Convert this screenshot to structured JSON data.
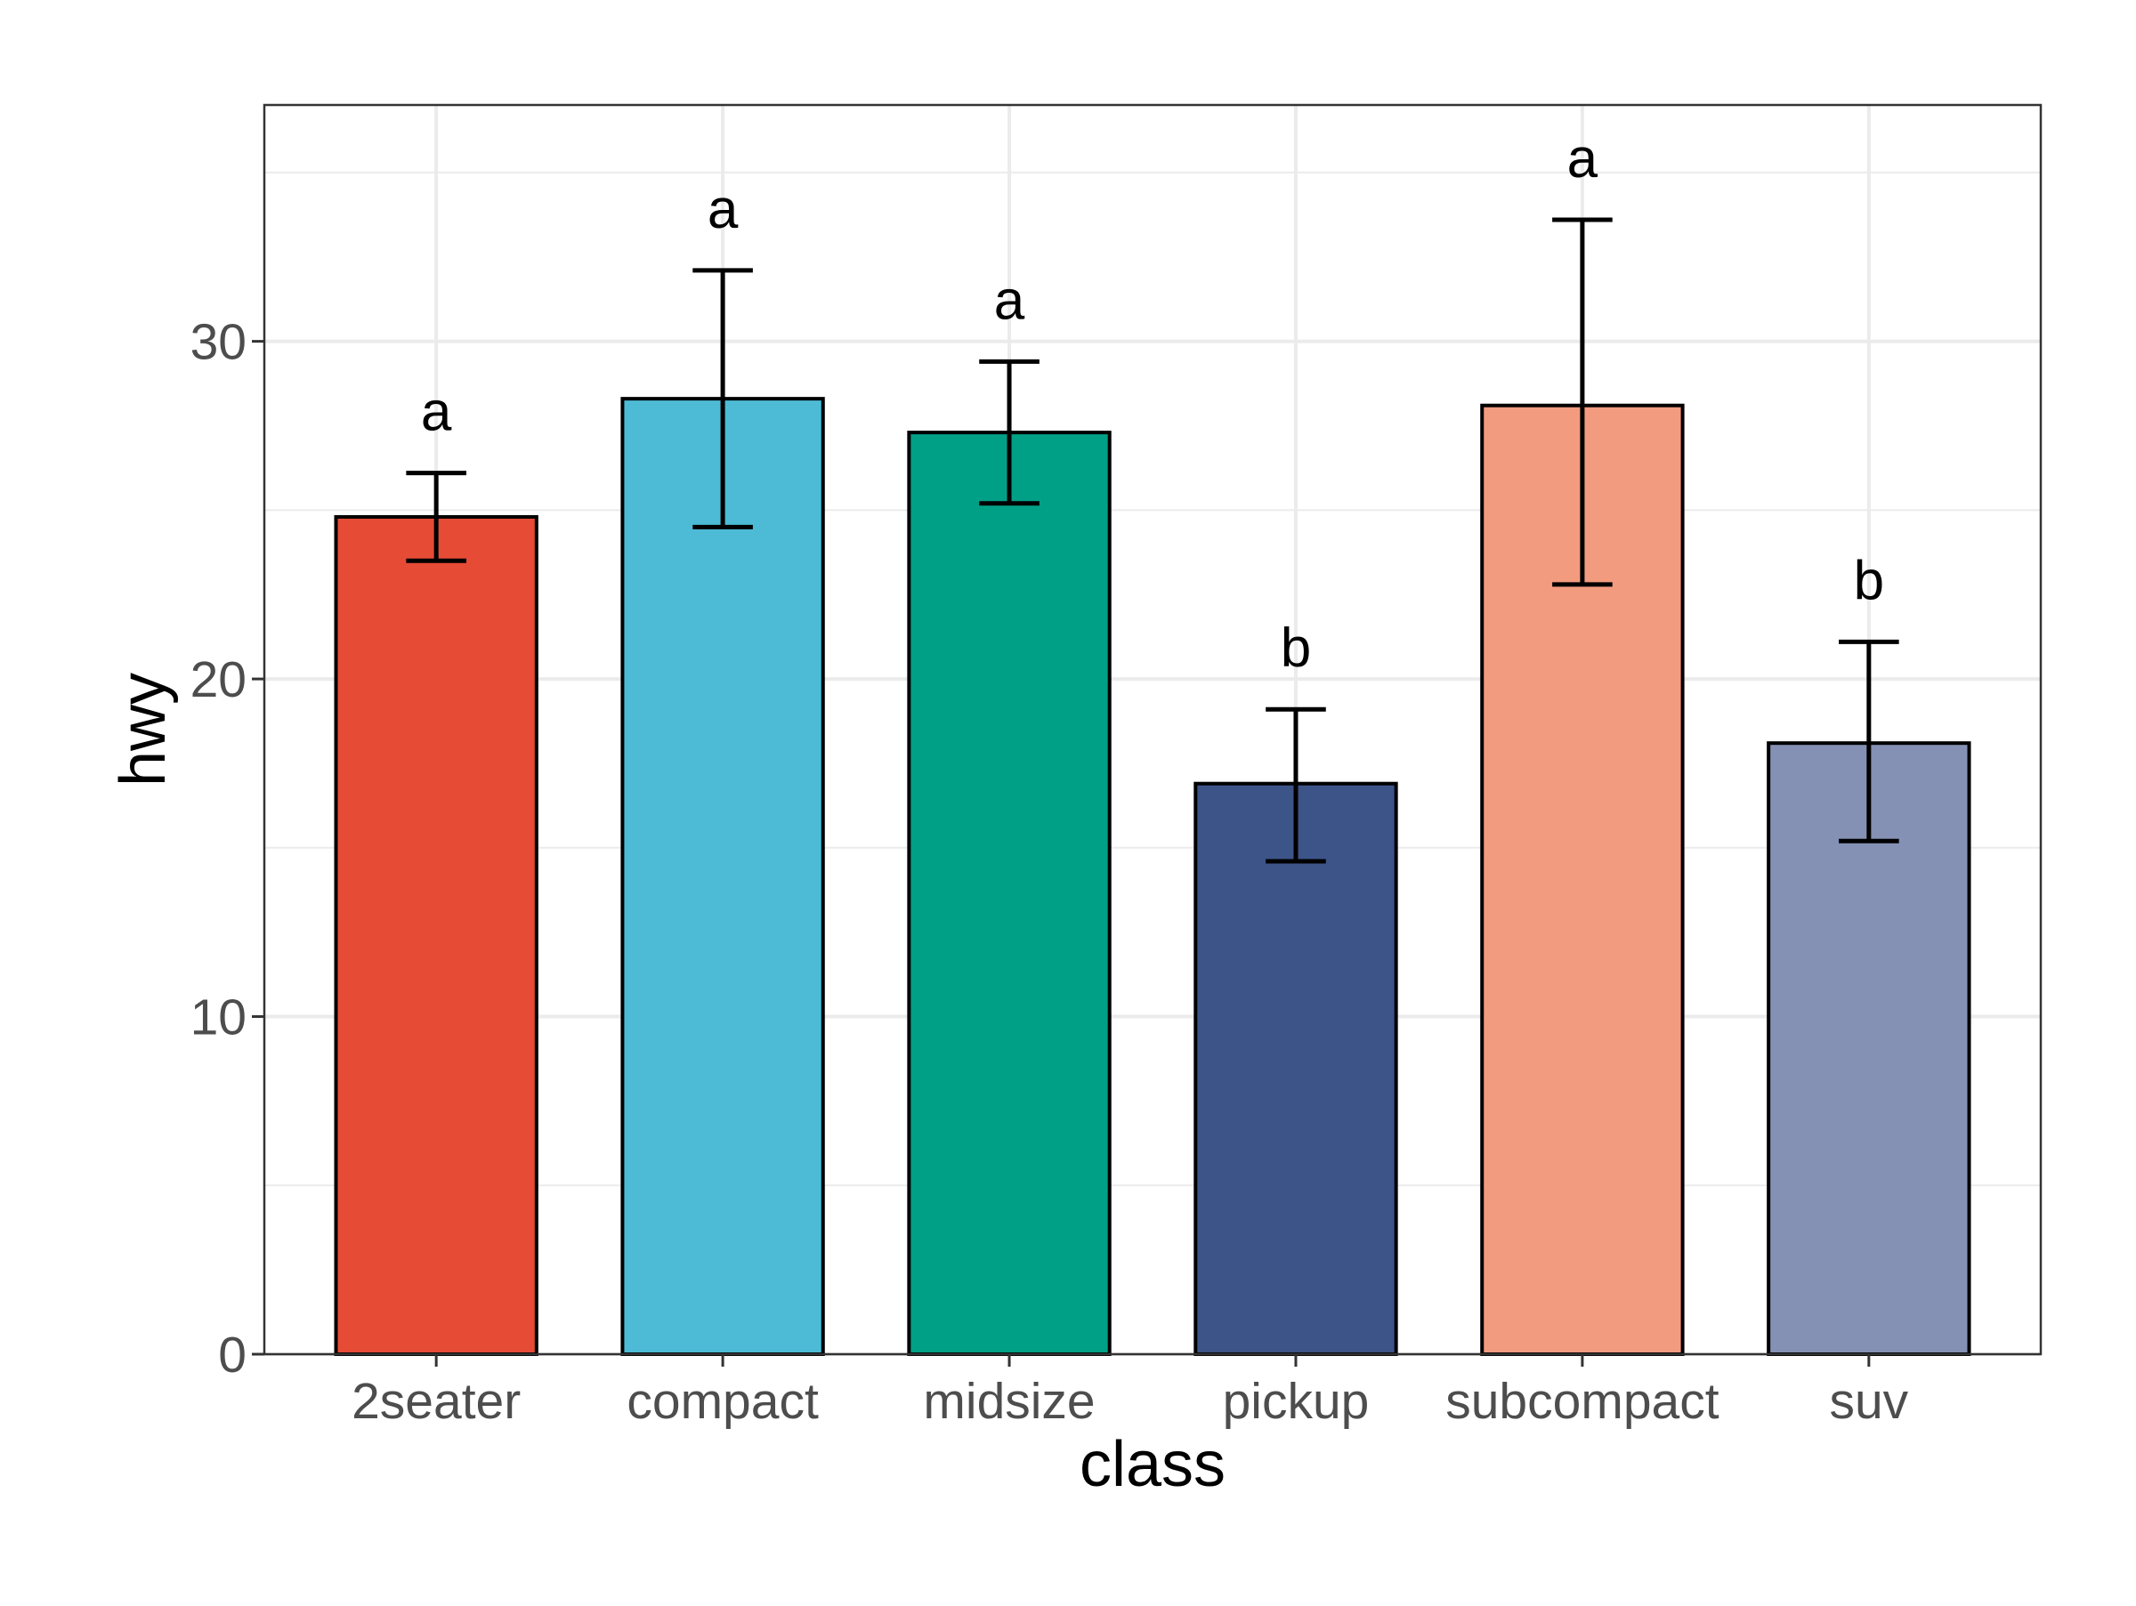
{
  "chart_data": {
    "type": "bar",
    "xlabel": "class",
    "ylabel": "hwy",
    "ylim": [
      0,
      37
    ],
    "yticks": [
      0,
      10,
      20,
      30
    ],
    "grid": true,
    "categories": [
      "2seater",
      "compact",
      "midsize",
      "pickup",
      "subcompact",
      "suv"
    ],
    "values": [
      24.8,
      28.3,
      27.3,
      16.9,
      28.1,
      18.1
    ],
    "error_low": [
      23.5,
      24.5,
      25.2,
      14.6,
      22.8,
      15.2
    ],
    "error_high": [
      26.1,
      32.1,
      29.4,
      19.1,
      33.6,
      21.1
    ],
    "group_labels": [
      "a",
      "a",
      "a",
      "b",
      "a",
      "b"
    ],
    "colors": [
      "#E64B35",
      "#4DBBD5",
      "#00A087",
      "#3C5488",
      "#F39B7F",
      "#8491B4"
    ]
  }
}
